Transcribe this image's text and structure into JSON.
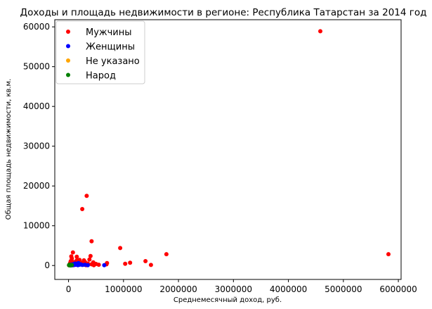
{
  "chart_data": {
    "type": "scatter",
    "title": "Доходы и площадь недвижимости в регионе: Республика Татарстан за 2014 год",
    "xlabel": "Среднемесячный доход, руб.",
    "ylabel": "Общая площадь недвижимости, кв.м.",
    "xlim": [
      -250000,
      6050000
    ],
    "ylim": [
      -3500,
      61800
    ],
    "xticks": [
      0,
      1000000,
      2000000,
      3000000,
      4000000,
      5000000,
      6000000
    ],
    "xtick_labels": [
      "0",
      "1000000",
      "2000000",
      "3000000",
      "4000000",
      "5000000",
      "6000000"
    ],
    "yticks": [
      0,
      10000,
      20000,
      30000,
      40000,
      50000,
      60000
    ],
    "ytick_labels": [
      "0",
      "10000",
      "20000",
      "30000",
      "40000",
      "50000",
      "60000"
    ],
    "grid": false,
    "legend_position": "top-left",
    "series": [
      {
        "name": "Мужчины",
        "color": "#ff0000",
        "points": [
          [
            4580000,
            58900
          ],
          [
            5820000,
            2850
          ],
          [
            1780000,
            2850
          ],
          [
            1400000,
            1100
          ],
          [
            1120000,
            700
          ],
          [
            1500000,
            150
          ],
          [
            1030000,
            450
          ],
          [
            940000,
            4400
          ],
          [
            700000,
            600
          ],
          [
            690000,
            300
          ],
          [
            420000,
            6100
          ],
          [
            330000,
            17500
          ],
          [
            250000,
            14200
          ],
          [
            80000,
            3300
          ],
          [
            50000,
            2300
          ],
          [
            60000,
            1800
          ],
          [
            150000,
            2200
          ],
          [
            200000,
            1400
          ],
          [
            280000,
            1300
          ],
          [
            400000,
            2400
          ],
          [
            380000,
            1500
          ],
          [
            450000,
            800
          ],
          [
            500000,
            400
          ],
          [
            550000,
            200
          ],
          [
            350000,
            500
          ],
          [
            300000,
            900
          ],
          [
            250000,
            700
          ],
          [
            200000,
            1000
          ],
          [
            150000,
            1300
          ],
          [
            100000,
            600
          ],
          [
            120000,
            400
          ],
          [
            80000,
            900
          ],
          [
            40000,
            1100
          ],
          [
            30000,
            600
          ],
          [
            20000,
            300
          ],
          [
            60000,
            200
          ],
          [
            90000,
            100
          ],
          [
            130000,
            200
          ],
          [
            180000,
            300
          ],
          [
            220000,
            500
          ],
          [
            270000,
            200
          ],
          [
            320000,
            100
          ],
          [
            420000,
            300
          ],
          [
            460000,
            100
          ],
          [
            20000,
            150
          ],
          [
            10000,
            50
          ],
          [
            35000,
            750
          ],
          [
            70000,
            450
          ],
          [
            110000,
            850
          ],
          [
            160000,
            650
          ]
        ]
      },
      {
        "name": "Женщины",
        "color": "#0000ff",
        "points": [
          [
            650000,
            100
          ],
          [
            120000,
            500
          ],
          [
            100000,
            300
          ],
          [
            150000,
            400
          ],
          [
            200000,
            200
          ],
          [
            180000,
            600
          ],
          [
            80000,
            150
          ],
          [
            60000,
            250
          ],
          [
            50000,
            100
          ],
          [
            40000,
            200
          ],
          [
            30000,
            80
          ],
          [
            90000,
            350
          ],
          [
            110000,
            150
          ],
          [
            140000,
            200
          ],
          [
            170000,
            100
          ],
          [
            220000,
            300
          ],
          [
            250000,
            150
          ],
          [
            300000,
            200
          ],
          [
            350000,
            100
          ],
          [
            70000,
            50
          ]
        ]
      },
      {
        "name": "Не указано",
        "color": "#ffa500",
        "points": []
      },
      {
        "name": "Народ",
        "color": "#008000",
        "points": [
          [
            10000,
            100
          ],
          [
            20000,
            50
          ],
          [
            30000,
            150
          ],
          [
            40000,
            30
          ],
          [
            50000,
            80
          ],
          [
            15000,
            200
          ],
          [
            60000,
            120
          ]
        ]
      }
    ]
  }
}
